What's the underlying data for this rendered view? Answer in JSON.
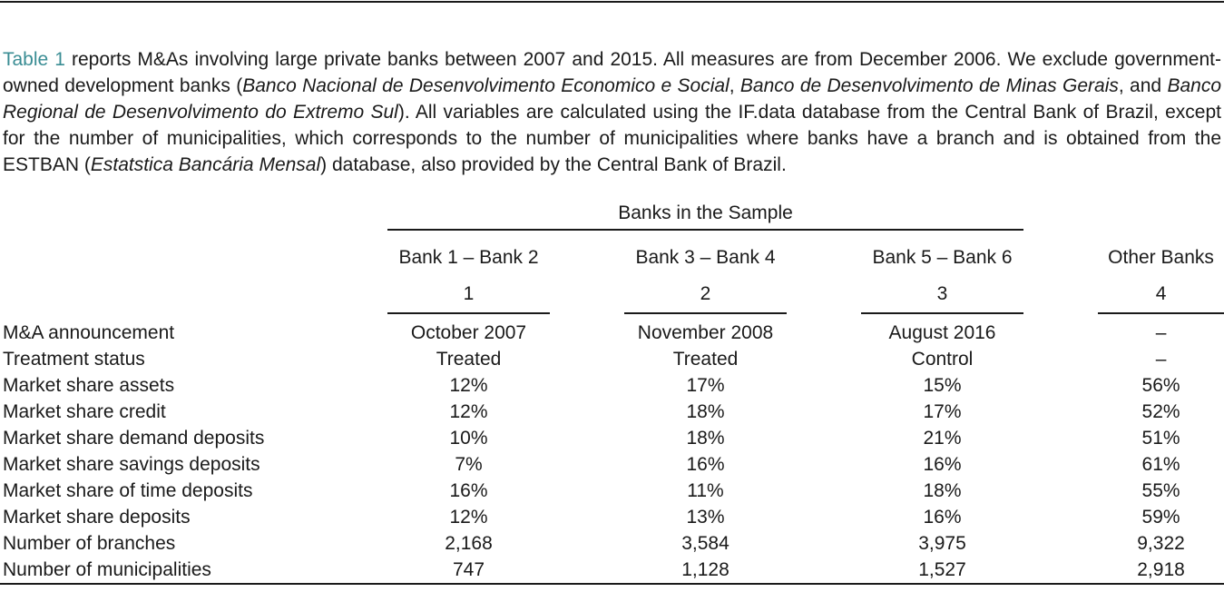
{
  "caption": {
    "link": "Table 1",
    "t1": " reports M&As involving large private banks between 2007 and 2015. All measures are from December 2006. We exclude government-owned development banks (",
    "i1": "Banco Nacional de Desenvolvimento Economico e Social",
    "t2": ", ",
    "i2": "Banco de Desenvolvimento de Minas Gerais",
    "t3": ", and ",
    "i3": "Banco Regional de Desenvolvimento do Extremo Sul",
    "t4": "). All variables are calculated using the IF.data database from the Central Bank of Brazil, except for the number of municipalities, which corresponds to the number of municipalities where banks have a branch and is obtained from the ESTBAN (",
    "i4": "Estatstica Bancária Mensal",
    "t5": ") database, also provided by the Central Bank of Brazil."
  },
  "table": {
    "group_header": "Banks in the Sample",
    "columns": [
      {
        "name": "Bank 1 – Bank 2",
        "num": "1"
      },
      {
        "name": "Bank 3 – Bank 4",
        "num": "2"
      },
      {
        "name": "Bank 5 – Bank 6",
        "num": "3"
      },
      {
        "name": "Other Banks",
        "num": "4"
      }
    ],
    "rows": [
      {
        "label": "M&A announcement",
        "values": [
          "October 2007",
          "November 2008",
          "August 2016",
          "–"
        ]
      },
      {
        "label": "Treatment status",
        "values": [
          "Treated",
          "Treated",
          "Control",
          "–"
        ]
      },
      {
        "label": "Market share assets",
        "values": [
          "12%",
          "17%",
          "15%",
          "56%"
        ]
      },
      {
        "label": "Market share credit",
        "values": [
          "12%",
          "18%",
          "17%",
          "52%"
        ]
      },
      {
        "label": "Market share demand deposits",
        "values": [
          "10%",
          "18%",
          "21%",
          "51%"
        ]
      },
      {
        "label": "Market share savings deposits",
        "values": [
          "7%",
          "16%",
          "16%",
          "61%"
        ]
      },
      {
        "label": "Market share of time deposits",
        "values": [
          "16%",
          "11%",
          "18%",
          "55%"
        ]
      },
      {
        "label": "Market share deposits",
        "values": [
          "12%",
          "13%",
          "16%",
          "59%"
        ]
      },
      {
        "label": "Number of branches",
        "values": [
          "2,168",
          "3,584",
          "3,975",
          "9,322"
        ]
      },
      {
        "label": "Number of municipalities",
        "values": [
          "747",
          "1,128",
          "1,527",
          "2,918"
        ]
      }
    ]
  }
}
